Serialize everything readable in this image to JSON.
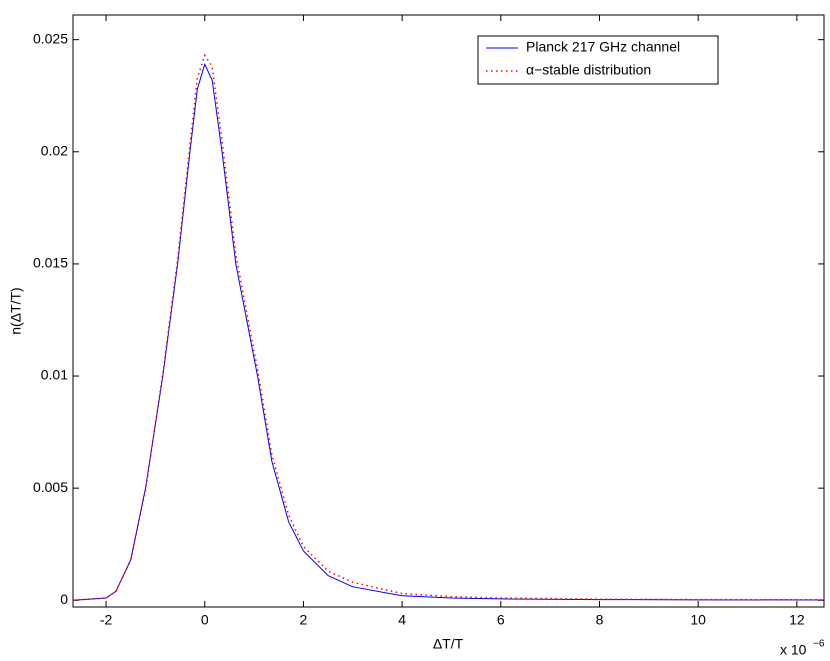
{
  "chart_data": {
    "type": "line",
    "xlabel": "ΔT/T",
    "ylabel": "n(ΔT/T)",
    "x_multiplier": "x 10",
    "x_multiplier_exp": "−6",
    "x": [
      -2.67,
      -2,
      -1.8,
      -1.5,
      -1.2,
      -0.85,
      -0.55,
      -0.3,
      -0.15,
      0,
      0.15,
      0.35,
      0.63,
      1.07,
      1.36,
      1.7,
      2,
      2.5,
      3,
      4,
      5,
      6,
      8,
      10,
      12.55
    ],
    "series": [
      {
        "name": "Planck 217 GHz channel",
        "color": "#0000ff",
        "style": "solid",
        "values": [
          0,
          0.0001,
          0.0004,
          0.0018,
          0.005,
          0.01,
          0.015,
          0.02,
          0.0228,
          0.0239,
          0.0232,
          0.02,
          0.015,
          0.01,
          0.0062,
          0.0035,
          0.0022,
          0.0011,
          0.0006,
          0.0002,
          0.0001,
          6e-05,
          3e-05,
          2e-05,
          1e-05
        ]
      },
      {
        "name": "α−stable distribution",
        "color": "#ff0000",
        "style": "dotted",
        "values": [
          0,
          0.0001,
          0.0004,
          0.0018,
          0.0049,
          0.0101,
          0.0152,
          0.0203,
          0.0233,
          0.0243,
          0.0238,
          0.0205,
          0.0154,
          0.0103,
          0.0065,
          0.0038,
          0.0024,
          0.0013,
          0.0008,
          0.0003,
          0.00016,
          0.0001,
          5e-05,
          3e-05,
          2e-05
        ]
      }
    ],
    "xlim": [
      -2.67,
      12.55
    ],
    "ylim": [
      -0.0003,
      0.0261
    ],
    "xticks": [
      -2,
      0,
      2,
      4,
      6,
      8,
      10,
      12
    ],
    "yticks": [
      0,
      0.005,
      0.01,
      0.015,
      0.02,
      0.025
    ],
    "grid": false,
    "legend": "upper-right"
  }
}
